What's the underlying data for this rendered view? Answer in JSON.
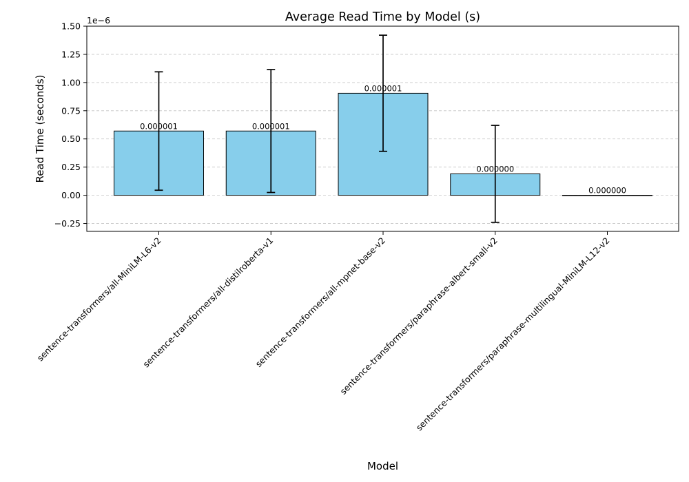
{
  "chart_data": {
    "type": "bar",
    "title": "Average Read Time by Model (s)",
    "xlabel": "Model",
    "ylabel": "Read Time (seconds)",
    "scale_note": "1e−6",
    "categories": [
      "sentence-transformers/all-MiniLM-L6-v2",
      "sentence-transformers/all-distilroberta-v1",
      "sentence-transformers/all-mpnet-base-v2",
      "sentence-transformers/paraphrase-albert-small-v2",
      "sentence-transformers/paraphrase-multilingual-MiniLM-L12-v2"
    ],
    "values": [
      0.57,
      0.57,
      0.905,
      0.19,
      0.0
    ],
    "errors": [
      0.525,
      0.545,
      0.515,
      0.43,
      0.0
    ],
    "data_labels": [
      "0.000001",
      "0.000001",
      "0.000001",
      "0.000000",
      "0.000000"
    ],
    "ylim": [
      -0.32,
      1.5
    ],
    "yticks": [
      -0.25,
      0.0,
      0.25,
      0.5,
      0.75,
      1.0,
      1.25,
      1.5
    ],
    "ytick_labels": [
      "−0.25",
      "0.00",
      "0.25",
      "0.50",
      "0.75",
      "1.00",
      "1.25",
      "1.50"
    ],
    "grid": "y-dashed",
    "bar_color": "#87ceeb",
    "edge_color": "#000000"
  }
}
